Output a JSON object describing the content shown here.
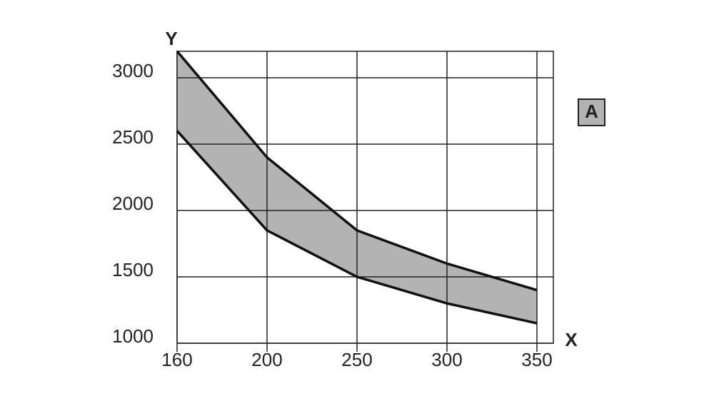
{
  "chart_data": {
    "type": "band",
    "x_label": "X",
    "y_label": "Y",
    "categories": [
      "160",
      "200",
      "250",
      "300",
      "350"
    ],
    "series": [
      {
        "name": "A",
        "color": "#b3b3b3",
        "upper": [
          3200,
          2400,
          1850,
          1600,
          1400
        ],
        "lower": [
          2600,
          1850,
          1500,
          1300,
          1150
        ]
      }
    ],
    "ylim": [
      1000,
      3200
    ],
    "yticks": [
      1000,
      1500,
      2000,
      2500,
      3000
    ],
    "grid": true
  }
}
